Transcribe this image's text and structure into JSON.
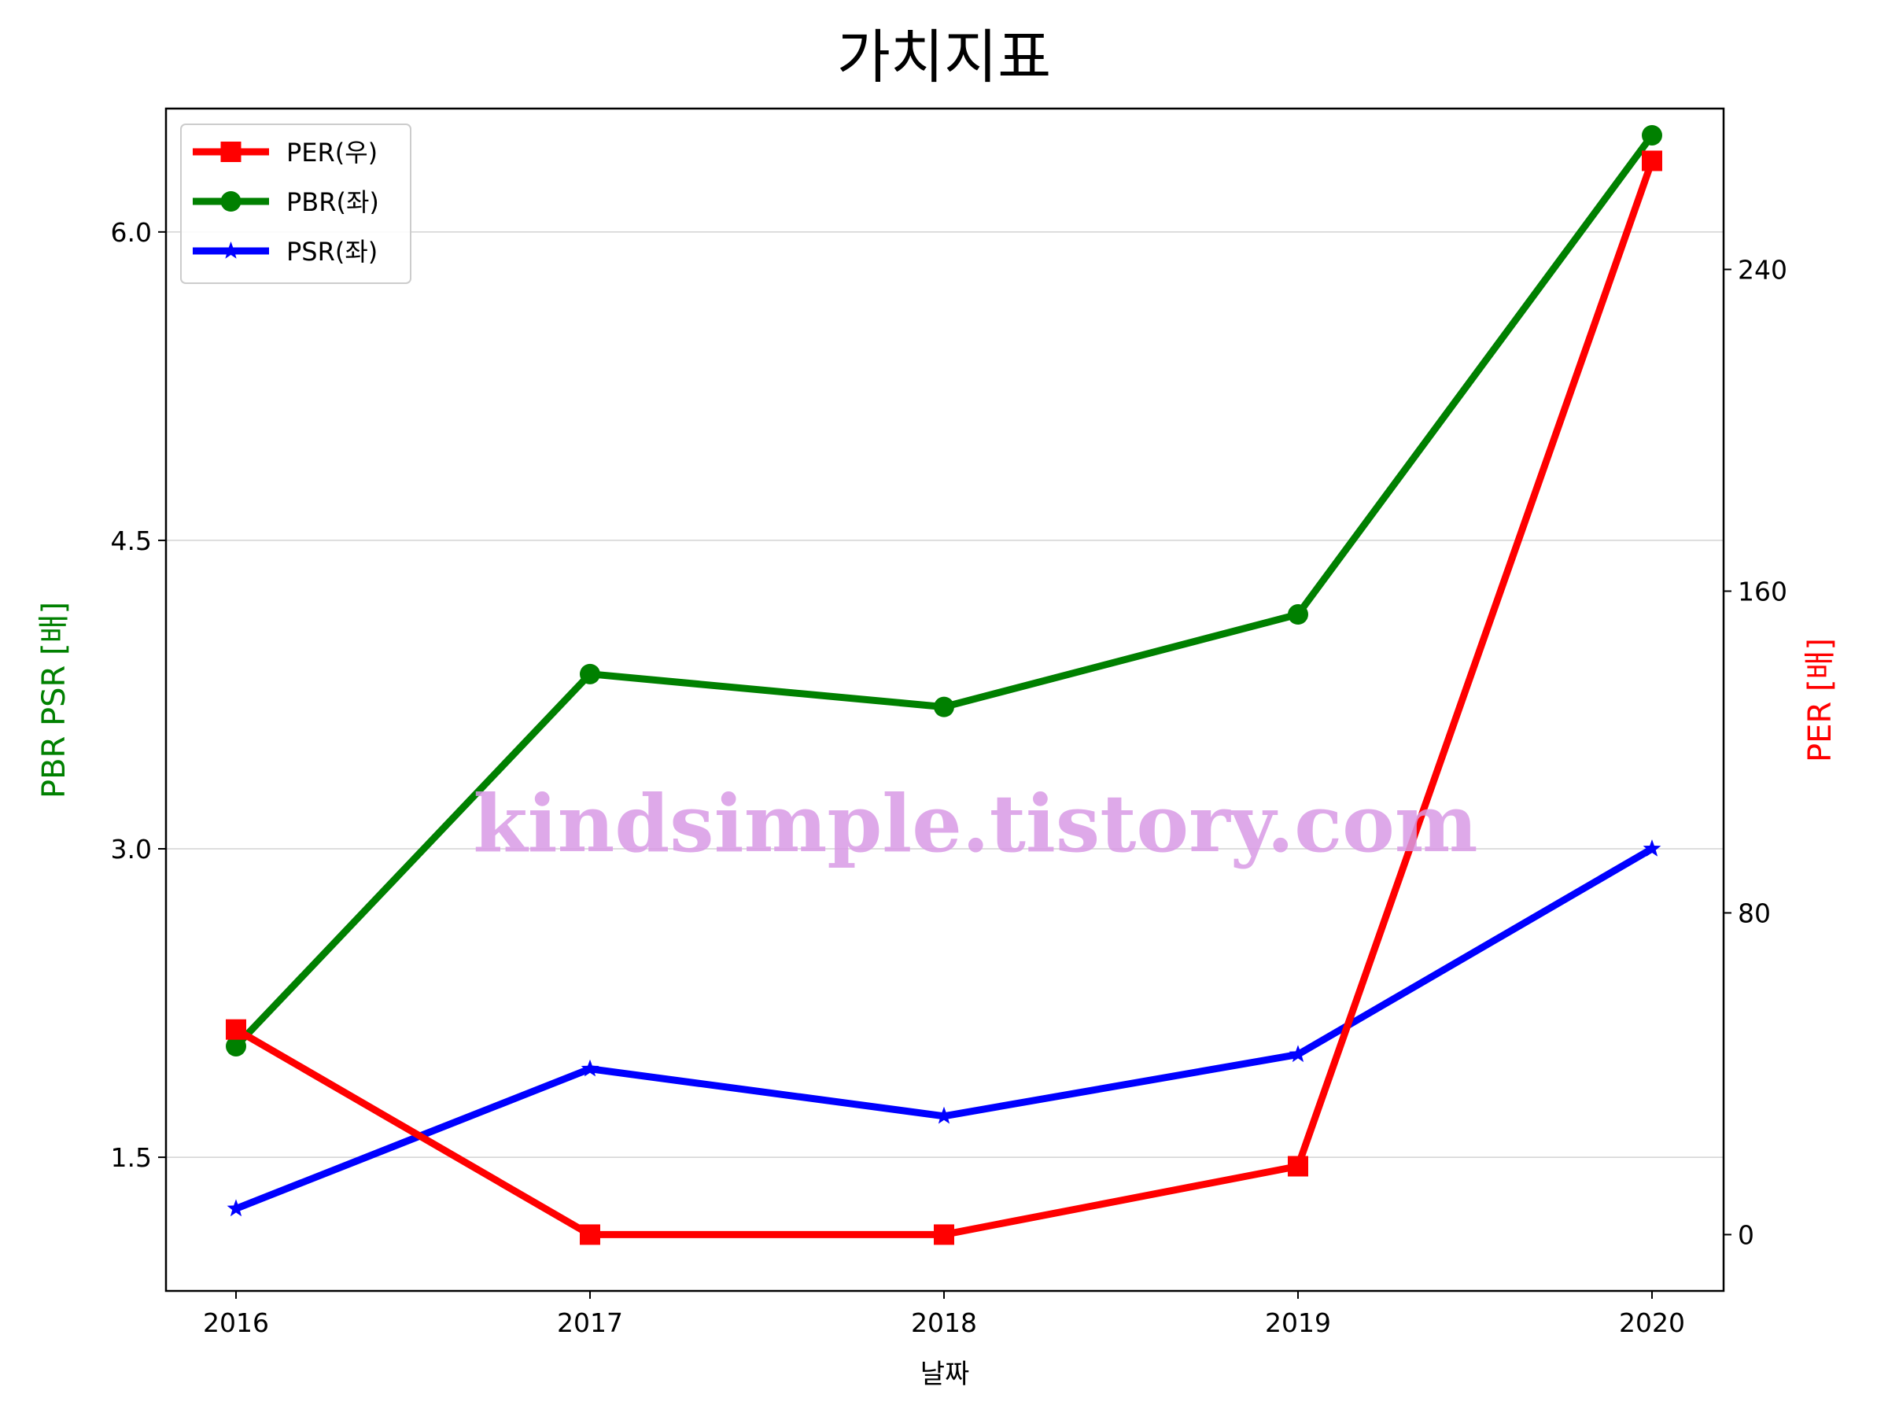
{
  "chart_data": {
    "type": "line",
    "title": "가치지표",
    "xlabel": "날짜",
    "ylabel_left": "PBR PSR [배]",
    "ylabel_right": "PER [배]",
    "categories": [
      "2016",
      "2017",
      "2018",
      "2019",
      "2020"
    ],
    "left_axis": {
      "ylim": [
        0.85,
        6.6
      ],
      "ticks": [
        1.5,
        3.0,
        4.5,
        6.0
      ],
      "tick_labels": [
        "1.5",
        "3.0",
        "4.5",
        "6.0"
      ]
    },
    "right_axis": {
      "ylim": [
        -14,
        280
      ],
      "ticks": [
        0,
        80,
        160,
        240
      ],
      "tick_labels": [
        "0",
        "80",
        "160",
        "240"
      ]
    },
    "grid": "horizontal",
    "legend_position": "top-left",
    "series": [
      {
        "name": "PER(우)",
        "axis": "right",
        "color": "#ff0000",
        "marker": "square",
        "values": [
          51,
          0,
          0,
          17,
          267
        ]
      },
      {
        "name": "PBR(좌)",
        "axis": "left",
        "color": "#008000",
        "marker": "circle",
        "values": [
          2.04,
          3.85,
          3.69,
          4.14,
          6.47
        ]
      },
      {
        "name": "PSR(좌)",
        "axis": "left",
        "color": "#0000ff",
        "marker": "star",
        "values": [
          1.25,
          1.93,
          1.7,
          2.0,
          3.0
        ]
      }
    ],
    "colors": {
      "left_axis_label": "#008000",
      "right_axis_label": "#ff0000",
      "grid": "#d3d3d3"
    }
  },
  "watermark": "kindsimple.tistory.com"
}
